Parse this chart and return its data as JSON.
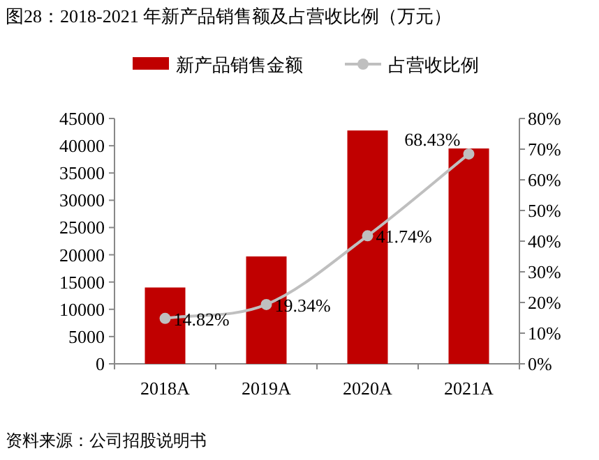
{
  "chart_data": {
    "type": "bar",
    "title": "图28：2018-2021 年新产品销售额及占营收比例（万元）",
    "categories": [
      "2018A",
      "2019A",
      "2020A",
      "2021A"
    ],
    "series": [
      {
        "name": "新产品销售金额",
        "color": "#c00000",
        "values": [
          14000,
          19700,
          42800,
          39500
        ]
      },
      {
        "name": "占营收比例",
        "type": "line",
        "axis": "y2",
        "color": "#bfbfbf",
        "marker": "circle",
        "values": [
          14.82,
          19.34,
          41.74,
          68.43
        ],
        "value_labels": [
          "14.82%",
          "19.34%",
          "41.74%",
          "68.43%"
        ]
      }
    ],
    "ylim": [
      0,
      45000
    ],
    "yticks": [
      0,
      5000,
      10000,
      15000,
      20000,
      25000,
      30000,
      35000,
      40000,
      45000
    ],
    "y2lim": [
      0,
      80
    ],
    "y2ticks": [
      {
        "value": 0,
        "label": "0%"
      },
      {
        "value": 10,
        "label": "10%"
      },
      {
        "value": 20,
        "label": "20%"
      },
      {
        "value": 30,
        "label": "30%"
      },
      {
        "value": 40,
        "label": "40%"
      },
      {
        "value": 50,
        "label": "50%"
      },
      {
        "value": 60,
        "label": "60%"
      },
      {
        "value": 70,
        "label": "70%"
      },
      {
        "value": 80,
        "label": "80%"
      }
    ],
    "legend": "top",
    "grid": false,
    "annotations": [
      "资料来源：公司招股说明书"
    ]
  }
}
